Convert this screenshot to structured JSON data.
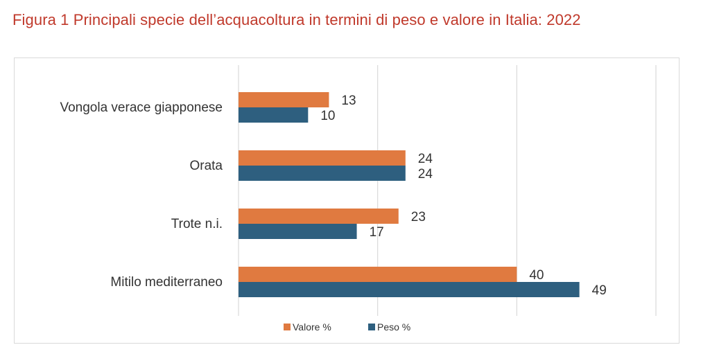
{
  "title": "Figura 1 Principali specie dell’acquacoltura in termini di peso e valore in Italia: 2022",
  "colors": {
    "title": "#c0392b",
    "valore": "#e07a40",
    "peso": "#2e5f7f",
    "grid": "#d9d9d9"
  },
  "chart_data": {
    "type": "bar",
    "orientation": "horizontal",
    "categories": [
      "Vongola verace giapponese",
      "Orata",
      "Trote n.i.",
      "Mitilo mediterraneo"
    ],
    "series": [
      {
        "name": "Valore %",
        "values": [
          13,
          24,
          23,
          40
        ],
        "color": "#e07a40"
      },
      {
        "name": "Peso %",
        "values": [
          10,
          24,
          17,
          49
        ],
        "color": "#2e5f7f"
      }
    ],
    "xlim": [
      0,
      60
    ],
    "grid": true,
    "legend": "bottom"
  }
}
